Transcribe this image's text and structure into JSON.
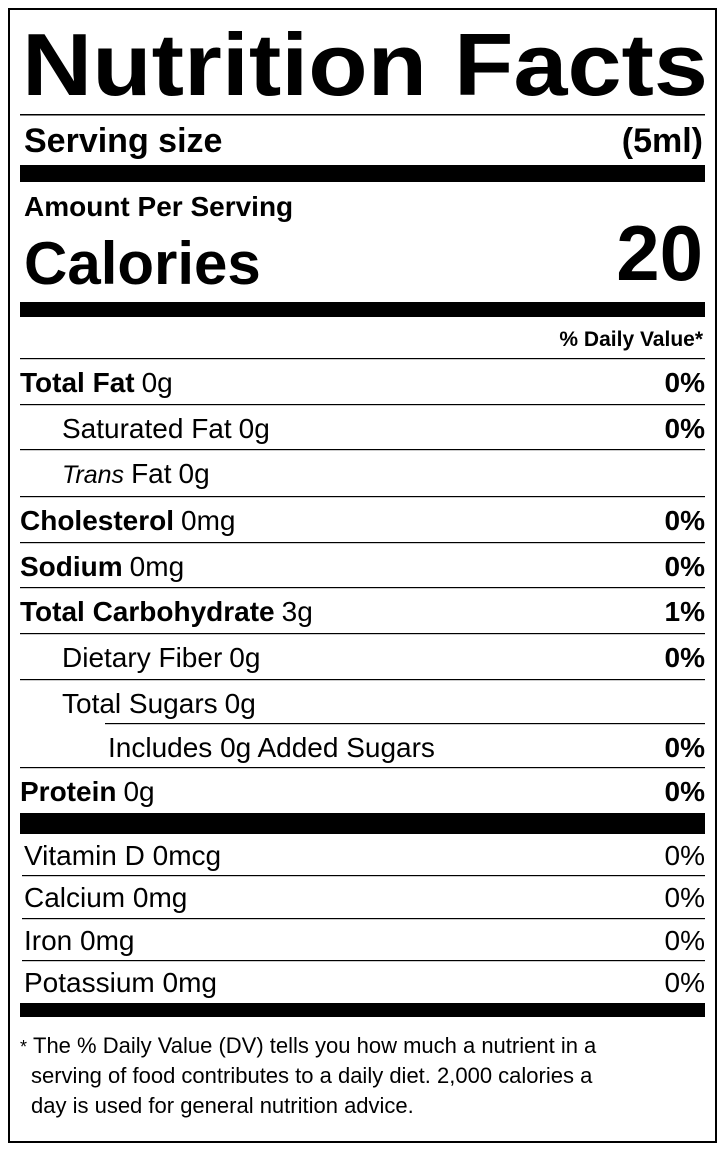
{
  "title": "Nutrition Facts",
  "serving": {
    "label": "Serving size",
    "value": "(5ml)"
  },
  "amount_per_serving": "Amount Per Serving",
  "calories": {
    "label": "Calories",
    "value": 20
  },
  "daily_value_header": "% Daily Value*",
  "nutrients": [
    {
      "name": "Total Fat",
      "amount": "0g",
      "dv": "0%",
      "level": 0
    },
    {
      "name": "Saturated Fat",
      "amount": "0g",
      "dv": "0%",
      "level": 1
    },
    {
      "name_italic": "Trans",
      "name": "Fat",
      "amount": "0g",
      "level": 1
    },
    {
      "name": "Cholesterol",
      "amount": "0mg",
      "dv": "0%",
      "level": 0
    },
    {
      "name": "Sodium",
      "amount": "0mg",
      "dv": "0%",
      "level": 0
    },
    {
      "name": "Total Carbohydrate",
      "amount": "3g",
      "dv": "1%",
      "level": 0
    },
    {
      "name": "Dietary Fiber",
      "amount": "0g",
      "dv": "0%",
      "level": 1
    },
    {
      "name": "Total Sugars",
      "amount": "0g",
      "level": 1
    },
    {
      "name": "Includes 0g Added Sugars",
      "dv": "0%",
      "level": 2
    },
    {
      "name": "Protein",
      "amount": "0g",
      "dv": "0%",
      "level": 0
    }
  ],
  "vitamins": [
    {
      "name": "Vitamin D 0mcg",
      "dv": "0%"
    },
    {
      "name": "Calcium 0mg",
      "dv": "0%"
    },
    {
      "name": "Iron 0mg",
      "dv": "0%"
    },
    {
      "name": "Potassium 0mg",
      "dv": "0%"
    }
  ],
  "footnote": {
    "mark": "*",
    "lines": [
      "The % Daily Value (DV) tells you how much a nutrient in a",
      "serving of food contributes to a daily diet. 2,000 calories a",
      "day is used for general nutrition advice."
    ]
  }
}
